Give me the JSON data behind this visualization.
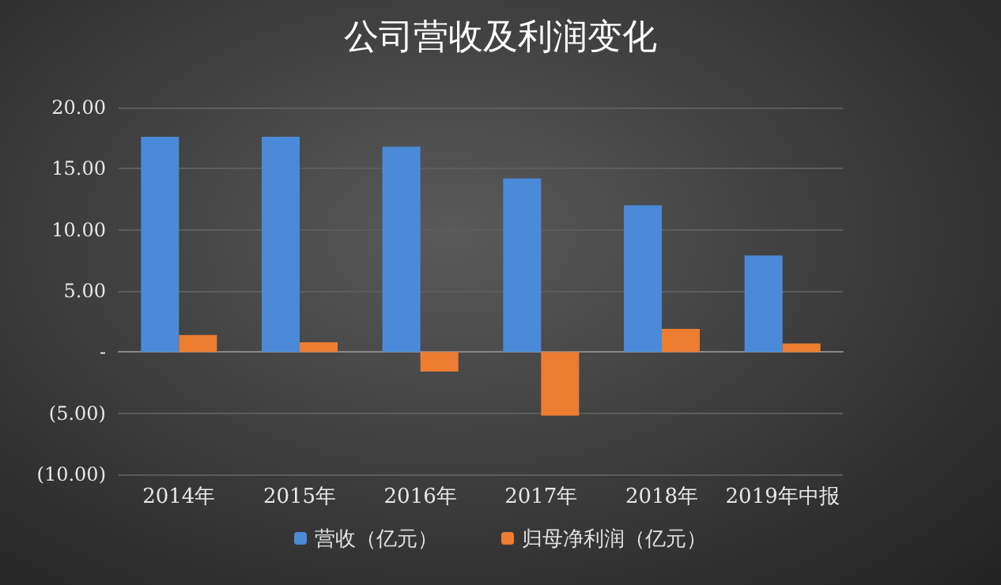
{
  "chart_data": {
    "type": "bar",
    "title": "公司营收及利润变化",
    "categories": [
      "2014年",
      "2015年",
      "2016年",
      "2017年",
      "2018年",
      "2019年中报"
    ],
    "series": [
      {
        "name": "营收（亿元）",
        "color": "#4a8ad8",
        "values": [
          17.6,
          17.6,
          16.8,
          14.2,
          12.0,
          7.9
        ]
      },
      {
        "name": "归母净利润（亿元）",
        "color": "#ed7d31",
        "values": [
          1.4,
          0.8,
          -1.6,
          -5.2,
          1.9,
          0.7
        ]
      }
    ],
    "ylim": [
      -10,
      20
    ],
    "yticks": [
      {
        "value": 20,
        "label": "20.00"
      },
      {
        "value": 15,
        "label": "15.00"
      },
      {
        "value": 10,
        "label": "10.00"
      },
      {
        "value": 5,
        "label": "5.00"
      },
      {
        "value": 0,
        "label": "-"
      },
      {
        "value": -5,
        "label": "(5.00)"
      },
      {
        "value": -10,
        "label": "(10.00)"
      }
    ],
    "grid": "y",
    "legend": "bottom"
  }
}
